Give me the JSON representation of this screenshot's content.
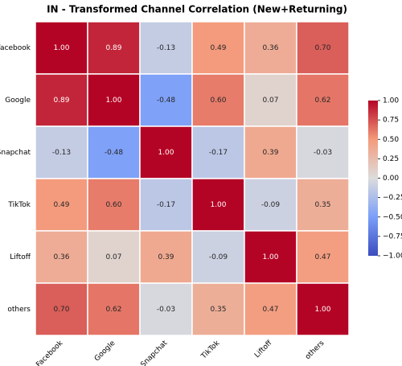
{
  "chart_data": {
    "type": "heatmap",
    "title": "IN - Transformed Channel Correlation (New+Returning)",
    "x_categories": [
      "Facebook",
      "Google",
      "Snapchat",
      "TikTok",
      "Liftoff",
      "others"
    ],
    "y_categories": [
      "Facebook",
      "Google",
      "Snapchat",
      "TikTok",
      "Liftoff",
      "others"
    ],
    "values": [
      [
        1.0,
        0.89,
        -0.13,
        0.49,
        0.36,
        0.7
      ],
      [
        0.89,
        1.0,
        -0.48,
        0.6,
        0.07,
        0.62
      ],
      [
        -0.13,
        -0.48,
        1.0,
        -0.17,
        0.39,
        -0.03
      ],
      [
        0.49,
        0.6,
        -0.17,
        1.0,
        -0.09,
        0.35
      ],
      [
        0.36,
        0.07,
        0.39,
        -0.09,
        1.0,
        0.47
      ],
      [
        0.7,
        0.62,
        -0.03,
        0.35,
        0.47,
        1.0
      ]
    ],
    "value_labels": [
      [
        "1.00",
        "0.89",
        "-0.13",
        "0.49",
        "0.36",
        "0.70"
      ],
      [
        "0.89",
        "1.00",
        "-0.48",
        "0.60",
        "0.07",
        "0.62"
      ],
      [
        "-0.13",
        "-0.48",
        "1.00",
        "-0.17",
        "0.39",
        "-0.03"
      ],
      [
        "0.49",
        "0.60",
        "-0.17",
        "1.00",
        "-0.09",
        "0.35"
      ],
      [
        "0.36",
        "0.07",
        "0.39",
        "-0.09",
        "1.00",
        "0.47"
      ],
      [
        "0.70",
        "0.62",
        "-0.03",
        "0.35",
        "0.47",
        "1.00"
      ]
    ],
    "colormap": "coolwarm",
    "zlim": [
      -1,
      1
    ],
    "zticks": [
      {
        "value": 1,
        "label": "1.00"
      },
      {
        "value": 0.75,
        "label": "0.75"
      },
      {
        "value": 0.5,
        "label": "0.50"
      },
      {
        "value": 0.25,
        "label": "0.25"
      },
      {
        "value": 0,
        "label": "0.00"
      },
      {
        "value": -0.25,
        "label": "−0.25"
      },
      {
        "value": -0.5,
        "label": "−0.50"
      },
      {
        "value": -0.75,
        "label": "−0.75"
      },
      {
        "value": -1,
        "label": "−1.00"
      }
    ]
  }
}
